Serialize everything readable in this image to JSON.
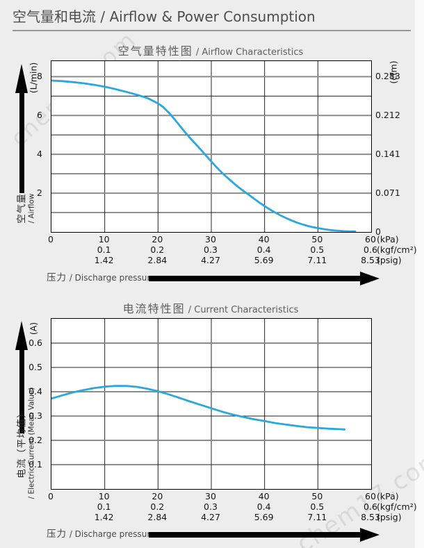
{
  "page": {
    "title": "空气量和电流 / Airflow & Power Consumption",
    "watermark": "chem17.com",
    "background": "#ededed",
    "accent_color": "#29a7df"
  },
  "pressure_axis": {
    "label_zh": "压力",
    "label_en": " / Discharge pressure",
    "rows": [
      {
        "unit": "(kPa)",
        "ticks": [
          {
            "x": 0,
            "label": "0"
          },
          {
            "x": 10,
            "label": "10"
          },
          {
            "x": 20,
            "label": "20"
          },
          {
            "x": 30,
            "label": "30"
          },
          {
            "x": 40,
            "label": "40"
          },
          {
            "x": 50,
            "label": "50"
          },
          {
            "x": 60,
            "label": "60"
          }
        ]
      },
      {
        "unit": "(kgf/cm²)",
        "ticks": [
          {
            "x": 10,
            "label": "0.1"
          },
          {
            "x": 20,
            "label": "0.2"
          },
          {
            "x": 30,
            "label": "0.3"
          },
          {
            "x": 40,
            "label": "0.4"
          },
          {
            "x": 50,
            "label": "0.5"
          },
          {
            "x": 60,
            "label": "0.6"
          }
        ]
      },
      {
        "unit": "(psig)",
        "ticks": [
          {
            "x": 10,
            "label": "1.42"
          },
          {
            "x": 20,
            "label": "2.84"
          },
          {
            "x": 30,
            "label": "4.27"
          },
          {
            "x": 40,
            "label": "5.69"
          },
          {
            "x": 50,
            "label": "7.11"
          },
          {
            "x": 60,
            "label": "8.53"
          }
        ]
      }
    ]
  },
  "chart_data": [
    {
      "type": "line",
      "title_zh": "空气量特性图",
      "title_en": " / Airflow Characteristics",
      "ylabel_zh": "空气量",
      "ylabel_en": "/ Airflow",
      "y_unit_left": "(L/min)",
      "y_unit_right": "(cfm)",
      "xlabel": "压力 / Discharge pressure",
      "xlim": [
        0,
        60
      ],
      "ylim": [
        0,
        8.8
      ],
      "grid": true,
      "legend": "none",
      "x_gridlines": [
        10,
        20,
        30,
        40,
        50
      ],
      "y_gridlines": [
        {
          "v": 1,
          "major": false
        },
        {
          "v": 2,
          "major": true
        },
        {
          "v": 3,
          "major": false
        },
        {
          "v": 4,
          "major": true
        },
        {
          "v": 5,
          "major": false
        },
        {
          "v": 6,
          "major": true
        },
        {
          "v": 7,
          "major": false
        },
        {
          "v": 8,
          "major": true
        }
      ],
      "left_ticks": [
        {
          "v": 8,
          "label": "8"
        },
        {
          "v": 6,
          "label": "6"
        },
        {
          "v": 4,
          "label": "4"
        },
        {
          "v": 2,
          "label": "2"
        }
      ],
      "right_ticks": [
        {
          "v": 8,
          "label": "0.283"
        },
        {
          "v": 6,
          "label": "0.212"
        },
        {
          "v": 4,
          "label": "0.141"
        },
        {
          "v": 2,
          "label": "0.071"
        },
        {
          "v": 0,
          "label": "0"
        }
      ],
      "series": [
        {
          "name": "airflow-curve",
          "color": "#29a7df",
          "x": [
            0,
            2,
            4,
            6,
            8,
            10,
            12,
            14,
            16,
            18,
            20,
            21,
            22,
            23,
            24,
            25,
            26,
            27,
            28,
            29,
            30,
            31,
            32,
            33,
            34,
            35,
            36,
            37,
            38,
            39,
            40,
            41,
            42,
            43,
            44,
            45,
            46,
            47,
            48,
            49,
            50,
            51,
            52,
            53,
            54,
            55,
            56,
            57
          ],
          "y": [
            7.8,
            7.77,
            7.72,
            7.66,
            7.58,
            7.48,
            7.36,
            7.22,
            7.07,
            6.9,
            6.62,
            6.43,
            6.15,
            5.84,
            5.5,
            5.16,
            4.85,
            4.55,
            4.25,
            3.94,
            3.63,
            3.33,
            3.05,
            2.8,
            2.56,
            2.33,
            2.12,
            1.92,
            1.72,
            1.52,
            1.33,
            1.16,
            1.0,
            0.85,
            0.72,
            0.6,
            0.49,
            0.4,
            0.32,
            0.25,
            0.2,
            0.15,
            0.11,
            0.08,
            0.06,
            0.04,
            0.03,
            0.03
          ]
        }
      ]
    },
    {
      "type": "line",
      "title_zh": "电流特性图",
      "title_en": " / Current Characteristics",
      "ylabel_zh": "电流（平均值）",
      "ylabel_en": "/ Electric Current (Mean Value)",
      "y_unit_left": "(A)",
      "y_unit_right": "",
      "xlabel": "压力 / Discharge pressure",
      "xlim": [
        0,
        60
      ],
      "ylim": [
        0,
        0.7
      ],
      "grid": true,
      "legend": "none",
      "x_gridlines": [
        10,
        20,
        30,
        40,
        50
      ],
      "y_gridlines": [
        {
          "v": 0.1,
          "major": false
        },
        {
          "v": 0.2,
          "major": true
        },
        {
          "v": 0.3,
          "major": false
        },
        {
          "v": 0.4,
          "major": true
        },
        {
          "v": 0.5,
          "major": false
        },
        {
          "v": 0.6,
          "major": true
        }
      ],
      "left_ticks": [
        {
          "v": 0.6,
          "label": "0.6"
        },
        {
          "v": 0.5,
          "label": "0.5"
        },
        {
          "v": 0.4,
          "label": "0.4"
        },
        {
          "v": 0.3,
          "label": "0.3"
        },
        {
          "v": 0.2,
          "label": "0.2"
        },
        {
          "v": 0.1,
          "label": "0.1"
        }
      ],
      "right_ticks": [],
      "series": [
        {
          "name": "current-curve",
          "color": "#29a7df",
          "x": [
            0,
            2,
            4,
            6,
            8,
            10,
            12,
            14,
            16,
            18,
            20,
            22,
            24,
            26,
            28,
            30,
            32,
            34,
            36,
            38,
            40,
            42,
            44,
            46,
            48,
            50,
            52,
            54,
            55
          ],
          "y": [
            0.372,
            0.385,
            0.397,
            0.407,
            0.415,
            0.421,
            0.424,
            0.424,
            0.42,
            0.412,
            0.402,
            0.389,
            0.375,
            0.36,
            0.346,
            0.332,
            0.318,
            0.306,
            0.296,
            0.287,
            0.279,
            0.271,
            0.265,
            0.259,
            0.254,
            0.251,
            0.248,
            0.246,
            0.245
          ]
        }
      ]
    }
  ]
}
